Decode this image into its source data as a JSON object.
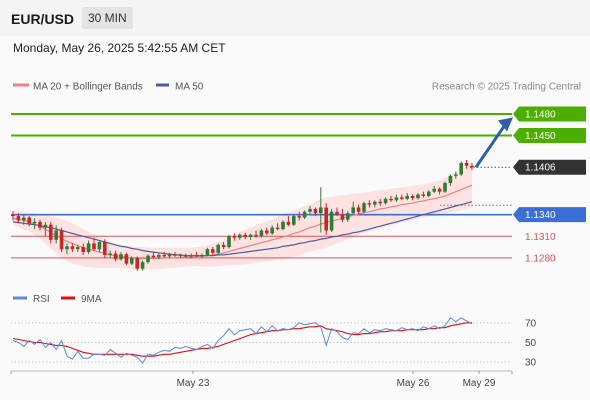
{
  "header": {
    "symbol": "EUR/USD",
    "timeframe": "30 MIN",
    "datetime": "Monday, May 26, 2025 5:42:55 AM CET"
  },
  "legend": {
    "bollinger": "MA 20 + Bollinger Bands",
    "ma50": "MA 50",
    "copyright": "Research © 2025 Trading Central"
  },
  "colors": {
    "bull": "#2e7d32",
    "bear": "#c62828",
    "ma20": "#f08080",
    "bands_fill": "#fde2e2",
    "ma50": "#4a5ca8",
    "resistance": "#4caf00",
    "pivot": "#3b6fd6",
    "support": "#e0505a",
    "current": "#333333",
    "arrow": "#2f5ea8",
    "rsi": "#5b8bd9",
    "rsi_ma": "#e01010"
  },
  "chart_data": [
    {
      "type": "candlestick",
      "series_labels": [
        "MA 20 + Bollinger Bands",
        "MA 50"
      ],
      "ylim": [
        1.1245,
        1.1505
      ],
      "x_ticks": [
        "May 23",
        "May 26",
        "May 29"
      ],
      "levels": [
        {
          "value": 1.148,
          "label": "1.1480",
          "role": "resistance"
        },
        {
          "value": 1.145,
          "label": "1.1450",
          "role": "resistance"
        },
        {
          "value": 1.1406,
          "label": "1.1406",
          "role": "current"
        },
        {
          "value": 1.134,
          "label": "1.1340",
          "role": "pivot"
        },
        {
          "value": 1.131,
          "label": "1.1310",
          "role": "support"
        },
        {
          "value": 1.128,
          "label": "1.1280",
          "role": "support"
        }
      ],
      "candles": [
        [
          1.134,
          1.1345,
          1.1332,
          1.1338
        ],
        [
          1.1338,
          1.1342,
          1.1328,
          1.1332
        ],
        [
          1.1332,
          1.134,
          1.1326,
          1.1336
        ],
        [
          1.1336,
          1.1338,
          1.1324,
          1.1328
        ],
        [
          1.1328,
          1.1335,
          1.132,
          1.133
        ],
        [
          1.133,
          1.1333,
          1.1318,
          1.1322
        ],
        [
          1.1322,
          1.133,
          1.131,
          1.1326
        ],
        [
          1.1326,
          1.133,
          1.13,
          1.1305
        ],
        [
          1.1305,
          1.1325,
          1.13,
          1.1318
        ],
        [
          1.1318,
          1.1322,
          1.1288,
          1.1292
        ],
        [
          1.1292,
          1.13,
          1.1285,
          1.1296
        ],
        [
          1.1296,
          1.13,
          1.1288,
          1.1292
        ],
        [
          1.1292,
          1.1298,
          1.1288,
          1.1295
        ],
        [
          1.1295,
          1.13,
          1.1284,
          1.1288
        ],
        [
          1.1288,
          1.1304,
          1.1285,
          1.13
        ],
        [
          1.13,
          1.1308,
          1.129,
          1.1292
        ],
        [
          1.1292,
          1.1305,
          1.1288,
          1.1302
        ],
        [
          1.1302,
          1.1306,
          1.128,
          1.1284
        ],
        [
          1.1284,
          1.129,
          1.128,
          1.1286
        ],
        [
          1.1286,
          1.129,
          1.1275,
          1.1278
        ],
        [
          1.1278,
          1.1288,
          1.1276,
          1.1285
        ],
        [
          1.1285,
          1.1287,
          1.127,
          1.1272
        ],
        [
          1.1272,
          1.1282,
          1.127,
          1.128
        ],
        [
          1.128,
          1.1282,
          1.1262,
          1.1265
        ],
        [
          1.1265,
          1.1276,
          1.1262,
          1.1274
        ],
        [
          1.1274,
          1.1285,
          1.1272,
          1.1283
        ],
        [
          1.1283,
          1.1288,
          1.1279,
          1.1281
        ],
        [
          1.1281,
          1.1286,
          1.1278,
          1.1284
        ],
        [
          1.1284,
          1.1288,
          1.128,
          1.1282
        ],
        [
          1.1282,
          1.1287,
          1.1279,
          1.1285
        ],
        [
          1.1285,
          1.1288,
          1.1281,
          1.1283
        ],
        [
          1.1283,
          1.1286,
          1.128,
          1.1284
        ],
        [
          1.1284,
          1.1286,
          1.128,
          1.1282
        ],
        [
          1.1282,
          1.1286,
          1.1279,
          1.1284
        ],
        [
          1.1284,
          1.1288,
          1.1281,
          1.1283
        ],
        [
          1.1283,
          1.1286,
          1.128,
          1.1284
        ],
        [
          1.1284,
          1.1294,
          1.1282,
          1.1292
        ],
        [
          1.1292,
          1.1295,
          1.1284,
          1.1287
        ],
        [
          1.1287,
          1.13,
          1.1285,
          1.1298
        ],
        [
          1.1298,
          1.1302,
          1.1292,
          1.1295
        ],
        [
          1.1295,
          1.1312,
          1.1293,
          1.131
        ],
        [
          1.131,
          1.1314,
          1.1304,
          1.1308
        ],
        [
          1.1308,
          1.1314,
          1.1305,
          1.1312
        ],
        [
          1.1312,
          1.1315,
          1.1306,
          1.1309
        ],
        [
          1.1309,
          1.1314,
          1.1305,
          1.1312
        ],
        [
          1.1312,
          1.1318,
          1.1308,
          1.131
        ],
        [
          1.131,
          1.132,
          1.1308,
          1.1318
        ],
        [
          1.1318,
          1.1322,
          1.1312,
          1.1314
        ],
        [
          1.1314,
          1.1325,
          1.1312,
          1.1322
        ],
        [
          1.1322,
          1.1328,
          1.1318,
          1.132
        ],
        [
          1.132,
          1.1332,
          1.1318,
          1.133
        ],
        [
          1.133,
          1.1338,
          1.1324,
          1.1326
        ],
        [
          1.1326,
          1.134,
          1.1324,
          1.1338
        ],
        [
          1.1338,
          1.1344,
          1.1332,
          1.1336
        ],
        [
          1.1336,
          1.1346,
          1.1334,
          1.1344
        ],
        [
          1.1344,
          1.1352,
          1.134,
          1.1348
        ],
        [
          1.1348,
          1.135,
          1.1338,
          1.1342
        ],
        [
          1.1342,
          1.1378,
          1.1315,
          1.135
        ],
        [
          1.135,
          1.1356,
          1.1312,
          1.1318
        ],
        [
          1.1318,
          1.1348,
          1.1316,
          1.1344
        ],
        [
          1.1344,
          1.135,
          1.1338,
          1.134
        ],
        [
          1.134,
          1.1348,
          1.133,
          1.1333
        ],
        [
          1.1333,
          1.1345,
          1.133,
          1.1342
        ],
        [
          1.1342,
          1.1358,
          1.134,
          1.135
        ],
        [
          1.135,
          1.1354,
          1.134,
          1.1344
        ],
        [
          1.1344,
          1.1358,
          1.1342,
          1.1356
        ],
        [
          1.1356,
          1.136,
          1.135,
          1.1354
        ],
        [
          1.1354,
          1.136,
          1.135,
          1.1358
        ],
        [
          1.1358,
          1.1362,
          1.1352,
          1.1356
        ],
        [
          1.1356,
          1.1364,
          1.1354,
          1.1362
        ],
        [
          1.1362,
          1.1366,
          1.1358,
          1.136
        ],
        [
          1.136,
          1.1368,
          1.1358,
          1.1364
        ],
        [
          1.1364,
          1.1368,
          1.136,
          1.1362
        ],
        [
          1.1362,
          1.137,
          1.136,
          1.1366
        ],
        [
          1.1366,
          1.1368,
          1.136,
          1.1363
        ],
        [
          1.1363,
          1.137,
          1.1361,
          1.1368
        ],
        [
          1.1368,
          1.1372,
          1.1364,
          1.1366
        ],
        [
          1.1366,
          1.1374,
          1.1364,
          1.1372
        ],
        [
          1.1372,
          1.138,
          1.137,
          1.1376
        ],
        [
          1.1376,
          1.1378,
          1.1368,
          1.1372
        ],
        [
          1.1372,
          1.1386,
          1.137,
          1.1384
        ],
        [
          1.1384,
          1.1396,
          1.138,
          1.1394
        ],
        [
          1.1394,
          1.14,
          1.139,
          1.1396
        ],
        [
          1.1396,
          1.1414,
          1.1394,
          1.1412
        ],
        [
          1.1412,
          1.1416,
          1.1404,
          1.1408
        ],
        [
          1.1408,
          1.1412,
          1.1402,
          1.1406
        ]
      ],
      "ma20": [
        1.1335,
        1.1334,
        1.1332,
        1.133,
        1.1327,
        1.1324,
        1.132,
        1.1315,
        1.1311,
        1.1307,
        1.1303,
        1.13,
        1.1297,
        1.1294,
        1.1292,
        1.129,
        1.1288,
        1.1286,
        1.1284,
        1.1283,
        1.1282,
        1.1281,
        1.128,
        1.1279,
        1.1279,
        1.1279,
        1.1279,
        1.1279,
        1.128,
        1.128,
        1.128,
        1.1281,
        1.1281,
        1.1281,
        1.1282,
        1.1282,
        1.1283,
        1.1284,
        1.1285,
        1.1287,
        1.1289,
        1.1291,
        1.1293,
        1.1295,
        1.1297,
        1.1299,
        1.1301,
        1.1303,
        1.1305,
        1.1307,
        1.1309,
        1.1311,
        1.1314,
        1.1316,
        1.1319,
        1.1322,
        1.1324,
        1.1327,
        1.1329,
        1.1331,
        1.1333,
        1.1335,
        1.1337,
        1.1339,
        1.1341,
        1.1343,
        1.1344,
        1.1346,
        1.1348,
        1.1349,
        1.1351,
        1.1352,
        1.1354,
        1.1355,
        1.1356,
        1.1358,
        1.1359,
        1.1361,
        1.1362,
        1.1364,
        1.1366,
        1.1369,
        1.1372,
        1.1375,
        1.1378,
        1.1381
      ],
      "band_upper": [
        1.1345,
        1.1345,
        1.1344,
        1.1343,
        1.1342,
        1.1341,
        1.134,
        1.1338,
        1.1336,
        1.1334,
        1.1331,
        1.1328,
        1.1324,
        1.132,
        1.1316,
        1.1312,
        1.1308,
        1.1305,
        1.1302,
        1.13,
        1.1298,
        1.1297,
        1.1296,
        1.1295,
        1.1295,
        1.1294,
        1.1294,
        1.1294,
        1.1294,
        1.1294,
        1.1294,
        1.1294,
        1.1294,
        1.1294,
        1.1295,
        1.1296,
        1.1298,
        1.13,
        1.1302,
        1.1305,
        1.1308,
        1.1312,
        1.1316,
        1.1319,
        1.1322,
        1.1325,
        1.1328,
        1.1331,
        1.1334,
        1.1337,
        1.134,
        1.1343,
        1.1346,
        1.1349,
        1.1352,
        1.1355,
        1.1358,
        1.1362,
        1.1364,
        1.1365,
        1.1366,
        1.1367,
        1.1368,
        1.1369,
        1.137,
        1.1371,
        1.1372,
        1.1373,
        1.1374,
        1.1375,
        1.1376,
        1.1377,
        1.1378,
        1.1379,
        1.138,
        1.1381,
        1.1382,
        1.1384,
        1.1386,
        1.1388,
        1.1391,
        1.1395,
        1.1399,
        1.1404,
        1.1408,
        1.1412
      ],
      "band_lower": [
        1.1325,
        1.1323,
        1.132,
        1.1317,
        1.1312,
        1.1307,
        1.13,
        1.1293,
        1.1286,
        1.128,
        1.1275,
        1.1272,
        1.127,
        1.1268,
        1.1267,
        1.1266,
        1.1266,
        1.1266,
        1.1266,
        1.1266,
        1.1266,
        1.1265,
        1.1264,
        1.1263,
        1.1263,
        1.1264,
        1.1264,
        1.1264,
        1.1265,
        1.1266,
        1.1266,
        1.1267,
        1.1268,
        1.1268,
        1.1269,
        1.1268,
        1.1268,
        1.1268,
        1.1268,
        1.1269,
        1.127,
        1.127,
        1.127,
        1.1271,
        1.1272,
        1.1273,
        1.1274,
        1.1275,
        1.1276,
        1.1277,
        1.1278,
        1.1279,
        1.1282,
        1.1283,
        1.1286,
        1.1289,
        1.129,
        1.1292,
        1.1294,
        1.1297,
        1.13,
        1.1303,
        1.1306,
        1.1309,
        1.1312,
        1.1315,
        1.1316,
        1.1319,
        1.1322,
        1.1323,
        1.1326,
        1.1327,
        1.133,
        1.1331,
        1.1332,
        1.1335,
        1.1336,
        1.1338,
        1.1338,
        1.134,
        1.1341,
        1.1343,
        1.1345,
        1.1346,
        1.1348,
        1.135
      ],
      "ma50": [
        1.133,
        1.1329,
        1.1328,
        1.1327,
        1.1326,
        1.1325,
        1.1323,
        1.1322,
        1.132,
        1.1318,
        1.1316,
        1.1314,
        1.1312,
        1.131,
        1.1308,
        1.1306,
        1.1304,
        1.1302,
        1.13,
        1.1298,
        1.1296,
        1.1295,
        1.1293,
        1.1292,
        1.129,
        1.1289,
        1.1288,
        1.1287,
        1.1286,
        1.1285,
        1.1284,
        1.1284,
        1.1283,
        1.1283,
        1.1283,
        1.1283,
        1.1283,
        1.1283,
        1.1284,
        1.1284,
        1.1285,
        1.1286,
        1.1287,
        1.1288,
        1.1289,
        1.129,
        1.1291,
        1.1292,
        1.1293,
        1.1294,
        1.1296,
        1.1297,
        1.1298,
        1.13,
        1.1301,
        1.1303,
        1.1304,
        1.1306,
        1.1307,
        1.1309,
        1.131,
        1.1312,
        1.1313,
        1.1315,
        1.1316,
        1.1318,
        1.132,
        1.1322,
        1.1324,
        1.1326,
        1.1328,
        1.133,
        1.1332,
        1.1334,
        1.1336,
        1.1338,
        1.134,
        1.1342,
        1.1344,
        1.1346,
        1.1348,
        1.135,
        1.1352,
        1.1354,
        1.1356,
        1.1358
      ]
    },
    {
      "type": "line",
      "series_labels": [
        "RSI",
        "9MA"
      ],
      "ylim": [
        22,
        80
      ],
      "y_ticks": [
        70,
        50,
        30
      ],
      "rsi": [
        52,
        50,
        46,
        52,
        48,
        53,
        45,
        50,
        43,
        52,
        36,
        33,
        41,
        34,
        34,
        38,
        38,
        37,
        43,
        39,
        35,
        39,
        37,
        35,
        29,
        38,
        37,
        40,
        42,
        41,
        45,
        44,
        46,
        44,
        43,
        46,
        48,
        44,
        52,
        57,
        64,
        58,
        62,
        63,
        64,
        59,
        66,
        61,
        67,
        62,
        64,
        63,
        65,
        70,
        68,
        69,
        70,
        66,
        47,
        64,
        61,
        55,
        53,
        60,
        59,
        64,
        60,
        63,
        62,
        64,
        63,
        62,
        65,
        63,
        64,
        62,
        66,
        64,
        67,
        64,
        67,
        75,
        71,
        75,
        72,
        69
      ],
      "rsi_ma": [
        54,
        53,
        52,
        51,
        50,
        50,
        49,
        48,
        47,
        47,
        46,
        44,
        42,
        40,
        39,
        38,
        38,
        38,
        38,
        38,
        38,
        38,
        38,
        37,
        36,
        36,
        36,
        37,
        38,
        38,
        39,
        40,
        41,
        42,
        43,
        44,
        44,
        45,
        46,
        48,
        50,
        52,
        54,
        56,
        58,
        59,
        60,
        61,
        62,
        62,
        63,
        63,
        64,
        64,
        65,
        66,
        66,
        67,
        64,
        63,
        62,
        61,
        59,
        58,
        58,
        59,
        59,
        60,
        61,
        61,
        62,
        62,
        62,
        63,
        63,
        63,
        63,
        64,
        64,
        65,
        65,
        67,
        68,
        69,
        70,
        70
      ]
    }
  ]
}
